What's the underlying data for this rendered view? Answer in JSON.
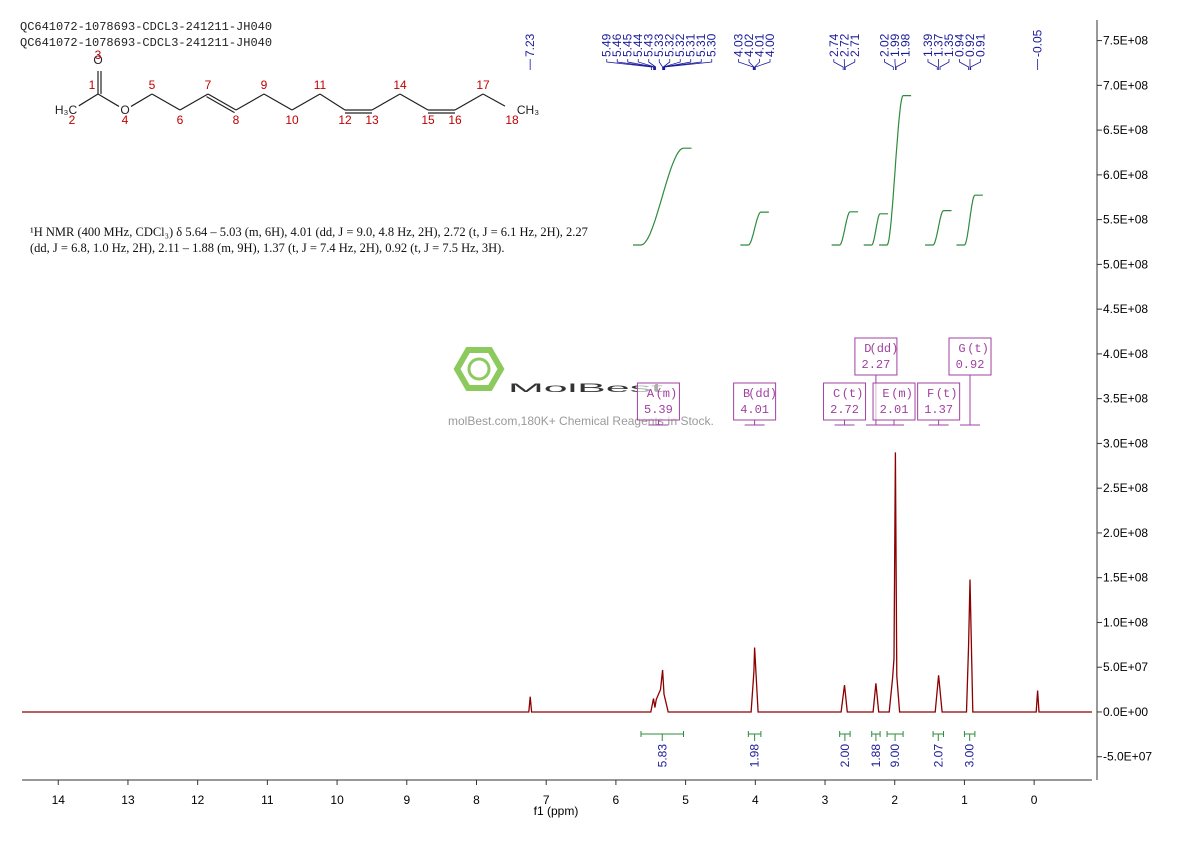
{
  "sample_ids": [
    "QC641072-1078693-CDCL3-241211-JH040",
    "QC641072-1078693-CDCL3-241211-JH040"
  ],
  "molecule": {
    "labels": [
      "H₃C",
      "O",
      "O",
      "CH₃"
    ],
    "numbers": [
      1,
      2,
      3,
      4,
      5,
      6,
      7,
      8,
      9,
      10,
      11,
      12,
      13,
      14,
      15,
      16,
      17,
      18
    ]
  },
  "description": "¹H NMR (400 MHz, CDCl₃) δ 5.64 – 5.03 (m, 6H), 4.01 (dd, J = 9.0, 4.8 Hz, 2H), 2.72 (t, J = 6.1 Hz, 2H), 2.27 (dd, J = 6.8, 1.0 Hz, 2H), 2.11 – 1.88 (m, 9H), 1.37 (t, J = 7.4 Hz, 2H), 0.92 (t, J = 7.5 Hz, 3H).",
  "watermark": {
    "brand": "MolBest",
    "tagline": "molBest.com,180K+ Chemical Reagents In Stock."
  },
  "chart_data": {
    "type": "line",
    "xlabel": "f1 (ppm)",
    "xlim": [
      14.52,
      -0.83
    ],
    "xticks": [
      14,
      13,
      12,
      11,
      10,
      9,
      8,
      7,
      6,
      5,
      4,
      3,
      2,
      1,
      0
    ],
    "ylim": [
      -76000000,
      773000000
    ],
    "yticks": [
      {
        "value": 750000000,
        "label": "7.5E+08"
      },
      {
        "value": 700000000,
        "label": "7.0E+08"
      },
      {
        "value": 650000000,
        "label": "6.5E+08"
      },
      {
        "value": 600000000,
        "label": "6.0E+08"
      },
      {
        "value": 550000000,
        "label": "5.5E+08"
      },
      {
        "value": 500000000,
        "label": "5.0E+08"
      },
      {
        "value": 450000000,
        "label": "4.5E+08"
      },
      {
        "value": 400000000,
        "label": "4.0E+08"
      },
      {
        "value": 350000000,
        "label": "3.5E+08"
      },
      {
        "value": 300000000,
        "label": "3.0E+08"
      },
      {
        "value": 250000000,
        "label": "2.5E+08"
      },
      {
        "value": 200000000,
        "label": "2.0E+08"
      },
      {
        "value": 150000000,
        "label": "1.5E+08"
      },
      {
        "value": 100000000,
        "label": "1.0E+08"
      },
      {
        "value": 50000000,
        "label": "5.0E+07"
      },
      {
        "value": 0,
        "label": "0.0E+00"
      },
      {
        "value": -50000000,
        "label": "-5.0E+07"
      }
    ],
    "series": [
      {
        "color": "#8b0000",
        "x": [
          14.52,
          7.25,
          7.23,
          7.21,
          5.5,
          5.46,
          5.44,
          5.42,
          5.36,
          5.33,
          5.31,
          5.25,
          4.06,
          4.02,
          4.01,
          3.96,
          2.77,
          2.72,
          2.68,
          2.31,
          2.27,
          2.23,
          2.08,
          2.03,
          2.01,
          1.99,
          1.97,
          1.93,
          1.42,
          1.37,
          1.32,
          0.97,
          0.94,
          0.92,
          0.88,
          -0.03,
          -0.05,
          -0.07,
          -0.83
        ],
        "values": [
          0,
          0,
          17000000,
          0,
          0,
          15000000,
          5000000,
          14000000,
          25000000,
          47000000,
          20000000,
          0,
          0,
          45000000,
          72000000,
          0,
          0,
          30000000,
          0,
          0,
          32000000,
          0,
          0,
          38000000,
          60000000,
          290000000,
          40000000,
          0,
          0,
          41000000,
          0,
          0,
          75000000,
          148000000,
          0,
          0,
          24000000,
          0,
          0
        ]
      }
    ],
    "peaks": {
      "values": [
        7.23,
        5.49,
        5.46,
        5.45,
        5.44,
        5.43,
        5.33,
        5.32,
        5.32,
        5.31,
        5.31,
        5.3,
        4.03,
        4.02,
        4.01,
        4.0,
        2.74,
        2.72,
        2.71,
        2.02,
        1.99,
        1.98,
        1.39,
        1.37,
        1.35,
        0.94,
        0.92,
        0.91,
        -0.05
      ],
      "value_labels": [
        "7.23",
        "5.49",
        "5.46",
        "5.45",
        "5.44",
        "5.43",
        "5.33",
        "5.32",
        "5.32",
        "5.31",
        "5.31",
        "5.30",
        "4.03",
        "4.02",
        "4.01",
        "4.00",
        "2.74",
        "2.72",
        "2.71",
        "2.02",
        "1.99",
        "1.98",
        "1.39",
        "1.37",
        "1.35",
        "0.94",
        "0.92",
        "0.91",
        "-0.05"
      ]
    },
    "multiplets": [
      {
        "name": "A",
        "kind": "(m)",
        "shift": 5.39
      },
      {
        "name": "B",
        "kind": "(dd)",
        "shift": 4.01
      },
      {
        "name": "C",
        "kind": "(t)",
        "shift": 2.72
      },
      {
        "name": "D",
        "kind": "(dd)",
        "shift": 2.27
      },
      {
        "name": "E",
        "kind": "(m)",
        "shift": 2.01
      },
      {
        "name": "F",
        "kind": "(t)",
        "shift": 1.37
      },
      {
        "name": "G",
        "kind": "(t)",
        "shift": 0.92
      }
    ],
    "integrals": {
      "ranges": [
        [
          5.64,
          5.03
        ],
        [
          4.1,
          3.92
        ],
        [
          2.79,
          2.64
        ],
        [
          2.33,
          2.21
        ],
        [
          2.11,
          1.88
        ],
        [
          1.45,
          1.3
        ],
        [
          1.0,
          0.85
        ]
      ],
      "values": [
        5.83,
        1.98,
        2.0,
        1.88,
        9.0,
        2.07,
        3.0
      ],
      "value_labels": [
        "5.83",
        "1.98",
        "2.00",
        "1.88",
        "9.00",
        "2.07",
        "3.00"
      ]
    }
  }
}
